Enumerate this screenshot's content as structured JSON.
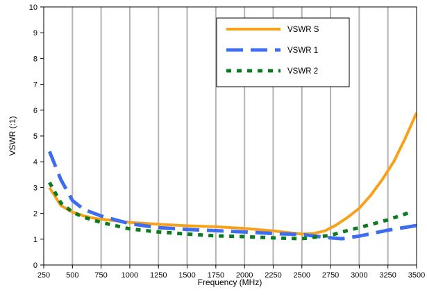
{
  "chart_data": {
    "type": "line",
    "title": "",
    "xlabel": "Frequency (MHz)",
    "ylabel": "VSWR (:1)",
    "xlim": [
      250,
      3500
    ],
    "ylim": [
      0,
      10
    ],
    "x_ticks": [
      250,
      500,
      750,
      1000,
      1250,
      1500,
      1750,
      2000,
      2250,
      2500,
      2750,
      3000,
      3250,
      3500
    ],
    "y_ticks": [
      0,
      1,
      2,
      3,
      4,
      5,
      6,
      7,
      8,
      9,
      10
    ],
    "grid": "vertical",
    "legend_position": "top-right",
    "series": [
      {
        "name": "VSWR S",
        "color": "#f7a11a",
        "style": "solid",
        "x": [
          300,
          400,
          500,
          600,
          700,
          800,
          1000,
          1250,
          1500,
          1750,
          2000,
          2250,
          2500,
          2600,
          2700,
          2800,
          2900,
          3000,
          3100,
          3200,
          3300,
          3400,
          3500
        ],
        "y": [
          3.0,
          2.3,
          2.05,
          1.9,
          1.8,
          1.75,
          1.65,
          1.58,
          1.52,
          1.48,
          1.42,
          1.32,
          1.2,
          1.22,
          1.32,
          1.55,
          1.85,
          2.2,
          2.7,
          3.3,
          4.0,
          4.9,
          5.9
        ]
      },
      {
        "name": "VSWR 1",
        "color": "#3f6df0",
        "style": "dashed",
        "x": [
          300,
          400,
          500,
          600,
          750,
          1000,
          1250,
          1500,
          1750,
          2000,
          2250,
          2500,
          2750,
          2850,
          3000,
          3250,
          3500
        ],
        "y": [
          4.4,
          3.3,
          2.5,
          2.15,
          1.9,
          1.6,
          1.45,
          1.38,
          1.33,
          1.28,
          1.22,
          1.18,
          1.05,
          1.02,
          1.12,
          1.35,
          1.53
        ]
      },
      {
        "name": "VSWR 2",
        "color": "#0c7a1e",
        "style": "dotted",
        "x": [
          300,
          400,
          500,
          600,
          750,
          1000,
          1250,
          1500,
          1750,
          2000,
          2250,
          2500,
          2750,
          2850,
          3000,
          3250,
          3450
        ],
        "y": [
          3.2,
          2.4,
          2.05,
          1.85,
          1.65,
          1.4,
          1.28,
          1.2,
          1.13,
          1.1,
          1.05,
          1.02,
          1.15,
          1.28,
          1.45,
          1.75,
          2.05
        ]
      }
    ]
  }
}
